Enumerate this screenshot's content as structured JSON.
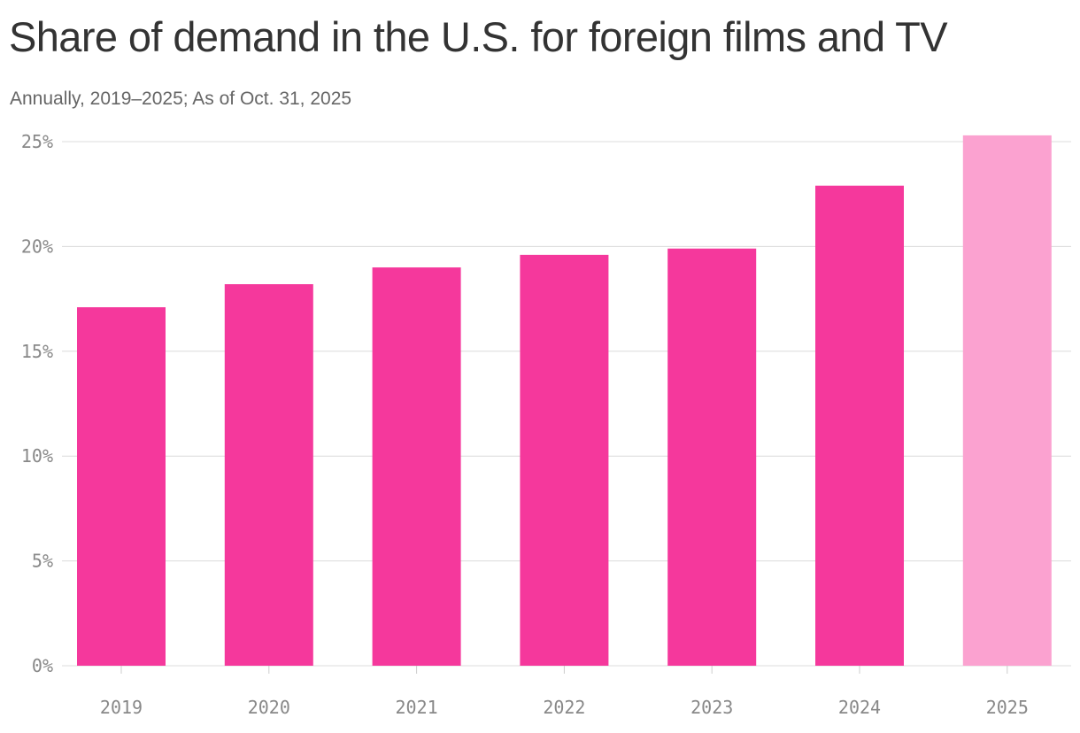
{
  "chart_data": {
    "type": "bar",
    "title": "Share of demand in the U.S. for foreign films and TV",
    "subtitle": "Annually, 2019–2025; As of Oct. 31, 2025",
    "xlabel": "",
    "ylabel": "",
    "categories": [
      "2019",
      "2020",
      "2021",
      "2022",
      "2023",
      "2024",
      "2025"
    ],
    "values": [
      17.1,
      18.2,
      19.0,
      19.6,
      19.9,
      22.9,
      25.3
    ],
    "bar_colors": [
      "#f5389c",
      "#f5389c",
      "#f5389c",
      "#f5389c",
      "#f5389c",
      "#f5389c",
      "#fba2d0"
    ],
    "ylim": [
      0,
      25
    ],
    "yticks": [
      0,
      5,
      10,
      15,
      20,
      25
    ],
    "ytick_labels": [
      "0%",
      "5%",
      "10%",
      "15%",
      "20%",
      "25%"
    ],
    "grid": true,
    "legend": "none"
  }
}
